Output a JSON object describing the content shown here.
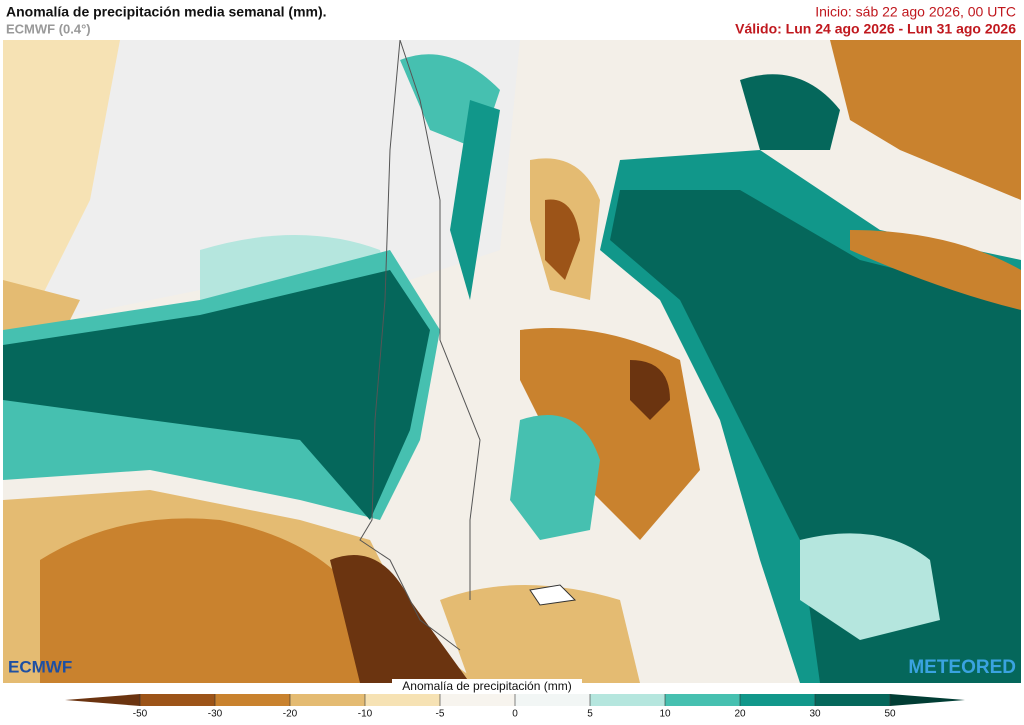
{
  "header": {
    "title": "Anomalía de precipitación media semanal (mm).",
    "model": "ECMWF (0.4°)",
    "init": "Inicio:  sáb 22 ago 2026, 00 UTC",
    "valid": "Válido: Lun 24 ago 2026 - Lun 31 ago 2026"
  },
  "logos": {
    "left": "ECMWF",
    "right": "METEORED"
  },
  "colorbar": {
    "label": "Anomalía de precipitación (mm)",
    "ticks": [
      -50,
      -30,
      -20,
      -10,
      -5,
      0,
      5,
      10,
      20,
      30,
      50
    ],
    "colors": [
      "#6b3410",
      "#9c5418",
      "#c9822e",
      "#e4bb72",
      "#f6e2b4",
      "#f7f4ee",
      "#f2f6f5",
      "#b5e6de",
      "#46c0b0",
      "#11978a",
      "#05675b",
      "#013d34"
    ]
  }
}
